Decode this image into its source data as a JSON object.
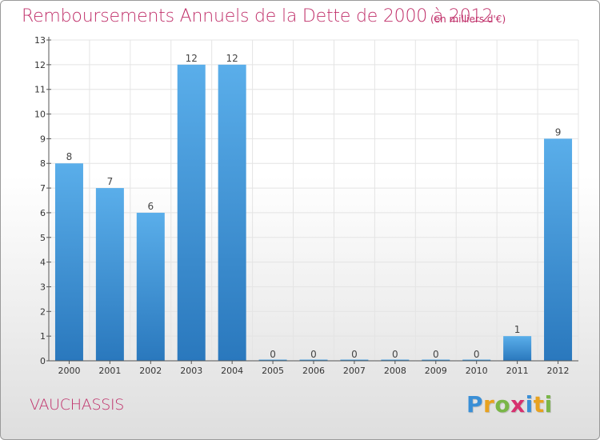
{
  "title": "Remboursements Annuels de la Dette de 2000 à 2012",
  "unit_label": "(en milliers d'€)",
  "commune": "VAUCHASSIS",
  "logo": {
    "letters": [
      "P",
      "r",
      "o",
      "x",
      "i",
      "t",
      "i"
    ],
    "colors": [
      "#3a8fd6",
      "#e8a21f",
      "#7ab648",
      "#d6306f",
      "#3a8fd6",
      "#e8a21f",
      "#7ab648"
    ]
  },
  "colors": {
    "title": "#c0306a",
    "bar_top": "#5aaeea",
    "bar_bottom": "#2a78bd",
    "axis": "#555555",
    "grid": "#e4e4e4"
  },
  "chart_data": {
    "type": "bar",
    "categories": [
      "2000",
      "2001",
      "2002",
      "2003",
      "2004",
      "2005",
      "2006",
      "2007",
      "2008",
      "2009",
      "2010",
      "2011",
      "2012"
    ],
    "values": [
      8,
      7,
      6,
      12,
      12,
      0,
      0,
      0,
      0,
      0,
      0,
      1,
      9
    ],
    "data_labels": [
      "8",
      "7",
      "6",
      "12",
      "12",
      "0",
      "0",
      "0",
      "0",
      "0",
      "0",
      "1",
      "9"
    ],
    "yticks": [
      "0",
      "1",
      "2",
      "3",
      "4",
      "5",
      "6",
      "7",
      "8",
      "9",
      "10",
      "11",
      "12",
      "13"
    ],
    "ylim": [
      0,
      13
    ],
    "grid": true,
    "title": "Remboursements Annuels de la Dette de 2000 à 2012",
    "xlabel": "",
    "ylabel": ""
  }
}
